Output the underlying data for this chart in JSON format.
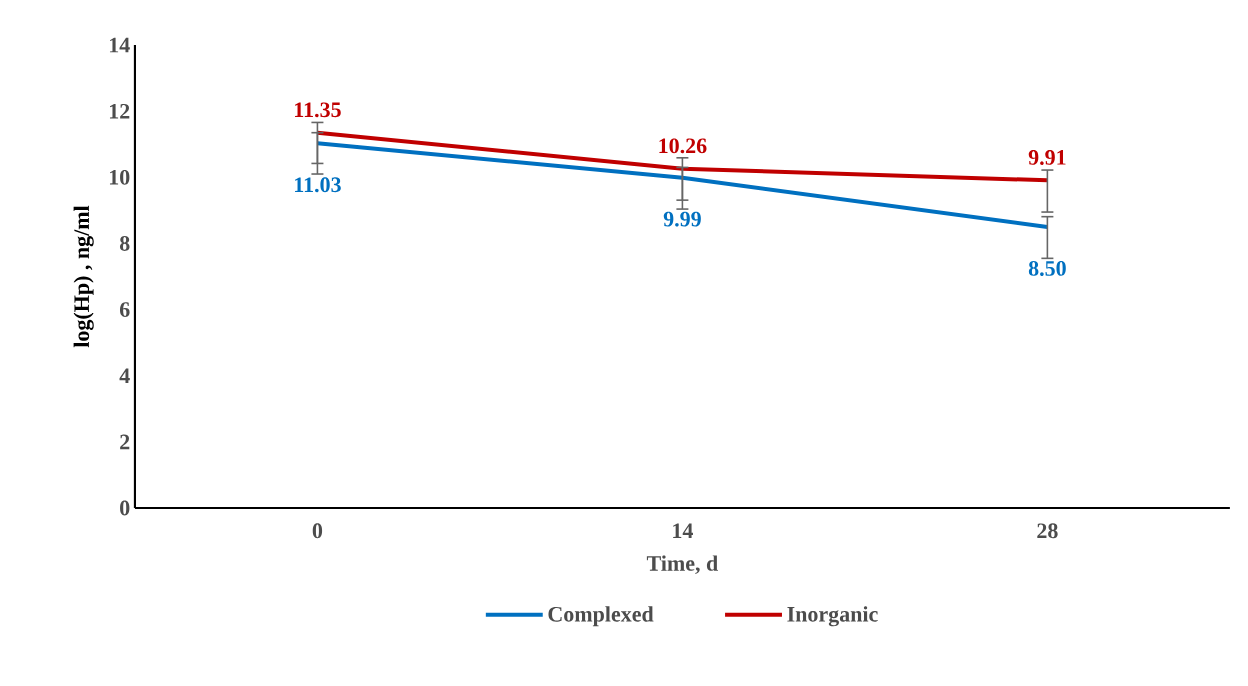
{
  "chart_data": {
    "type": "line",
    "xlabel": "Time, d",
    "ylabel": "log(Hp) , ng/ml",
    "categories": [
      "0",
      "14",
      "28"
    ],
    "series": [
      {
        "name": "Complexed",
        "color": "#0070c0",
        "values": [
          11.03,
          9.99,
          8.5
        ],
        "value_labels": [
          "11.03",
          "9.99",
          "8.50"
        ],
        "errors": [
          [
            10.1,
            11.35
          ],
          [
            9.04,
            10.3
          ],
          [
            7.55,
            8.81
          ]
        ]
      },
      {
        "name": "Inorganic",
        "color": "#c00000",
        "values": [
          11.35,
          10.26,
          9.91
        ],
        "value_labels": [
          "11.35",
          "10.26",
          "9.91"
        ],
        "errors": [
          [
            10.42,
            11.66
          ],
          [
            9.31,
            10.59
          ],
          [
            8.95,
            10.22
          ]
        ]
      }
    ],
    "ylim": [
      0,
      14
    ],
    "yticks": [
      0,
      2,
      4,
      6,
      8,
      10,
      12,
      14
    ],
    "grid": false,
    "legend": "bottom",
    "marker": "none",
    "line_style": "solid"
  }
}
